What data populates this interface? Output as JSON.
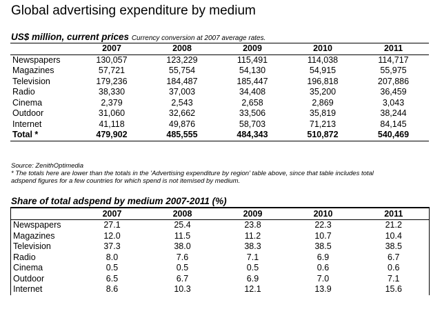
{
  "title": "Global advertising expenditure by medium",
  "table1": {
    "heading": "US$ million, current prices",
    "note": "Currency conversion at 2007 average rates.",
    "years": [
      "2007",
      "2008",
      "2009",
      "2010",
      "2011"
    ],
    "rows": [
      {
        "label": "Newspapers",
        "values": [
          "130,057",
          "123,229",
          "115,491",
          "114,038",
          "114,717"
        ]
      },
      {
        "label": "Magazines",
        "values": [
          "57,721",
          "55,754",
          "54,130",
          "54,915",
          "55,975"
        ]
      },
      {
        "label": "Television",
        "values": [
          "179,236",
          "184,487",
          "185,447",
          "196,818",
          "207,886"
        ]
      },
      {
        "label": "Radio",
        "values": [
          "38,330",
          "37,003",
          "34,408",
          "35,200",
          "36,459"
        ]
      },
      {
        "label": "Cinema",
        "values": [
          "2,379",
          "2,543",
          "2,658",
          "2,869",
          "3,043"
        ]
      },
      {
        "label": "Outdoor",
        "values": [
          "31,060",
          "32,662",
          "33,506",
          "35,819",
          "38,244"
        ]
      },
      {
        "label": "Internet",
        "values": [
          "41,118",
          "49,876",
          "58,703",
          "71,213",
          "84,145"
        ]
      }
    ],
    "total": {
      "label": "Total *",
      "values": [
        "479,902",
        "485,555",
        "484,343",
        "510,872",
        "540,469"
      ]
    },
    "source": "Source: ZenithOptimedia",
    "footnote1": "* The totals here are lower than the totals in the 'Advertising expenditure by region' table above, since that table includes total",
    "footnote2": "adspend figures for a few countries for which spend is not itemised by medium."
  },
  "table2": {
    "heading": "Share of total adspend by medium 2007-2011 (%)",
    "years": [
      "2007",
      "2008",
      "2009",
      "2010",
      "2011"
    ],
    "rows": [
      {
        "label": "Newspapers",
        "values": [
          "27.1",
          "25.4",
          "23.8",
          "22.3",
          "21.2"
        ]
      },
      {
        "label": "Magazines",
        "values": [
          "12.0",
          "11.5",
          "11.2",
          "10.7",
          "10.4"
        ]
      },
      {
        "label": "Television",
        "values": [
          "37.3",
          "38.0",
          "38.3",
          "38.5",
          "38.5"
        ]
      },
      {
        "label": "Radio",
        "values": [
          "8.0",
          "7.6",
          "7.1",
          "6.9",
          "6.7"
        ]
      },
      {
        "label": "Cinema",
        "values": [
          "0.5",
          "0.5",
          "0.5",
          "0.6",
          "0.6"
        ]
      },
      {
        "label": "Outdoor",
        "values": [
          "6.5",
          "6.7",
          "6.9",
          "7.0",
          "7.1"
        ]
      },
      {
        "label": "Internet",
        "values": [
          "8.6",
          "10.3",
          "12.1",
          "13.9",
          "15.6"
        ]
      }
    ]
  }
}
